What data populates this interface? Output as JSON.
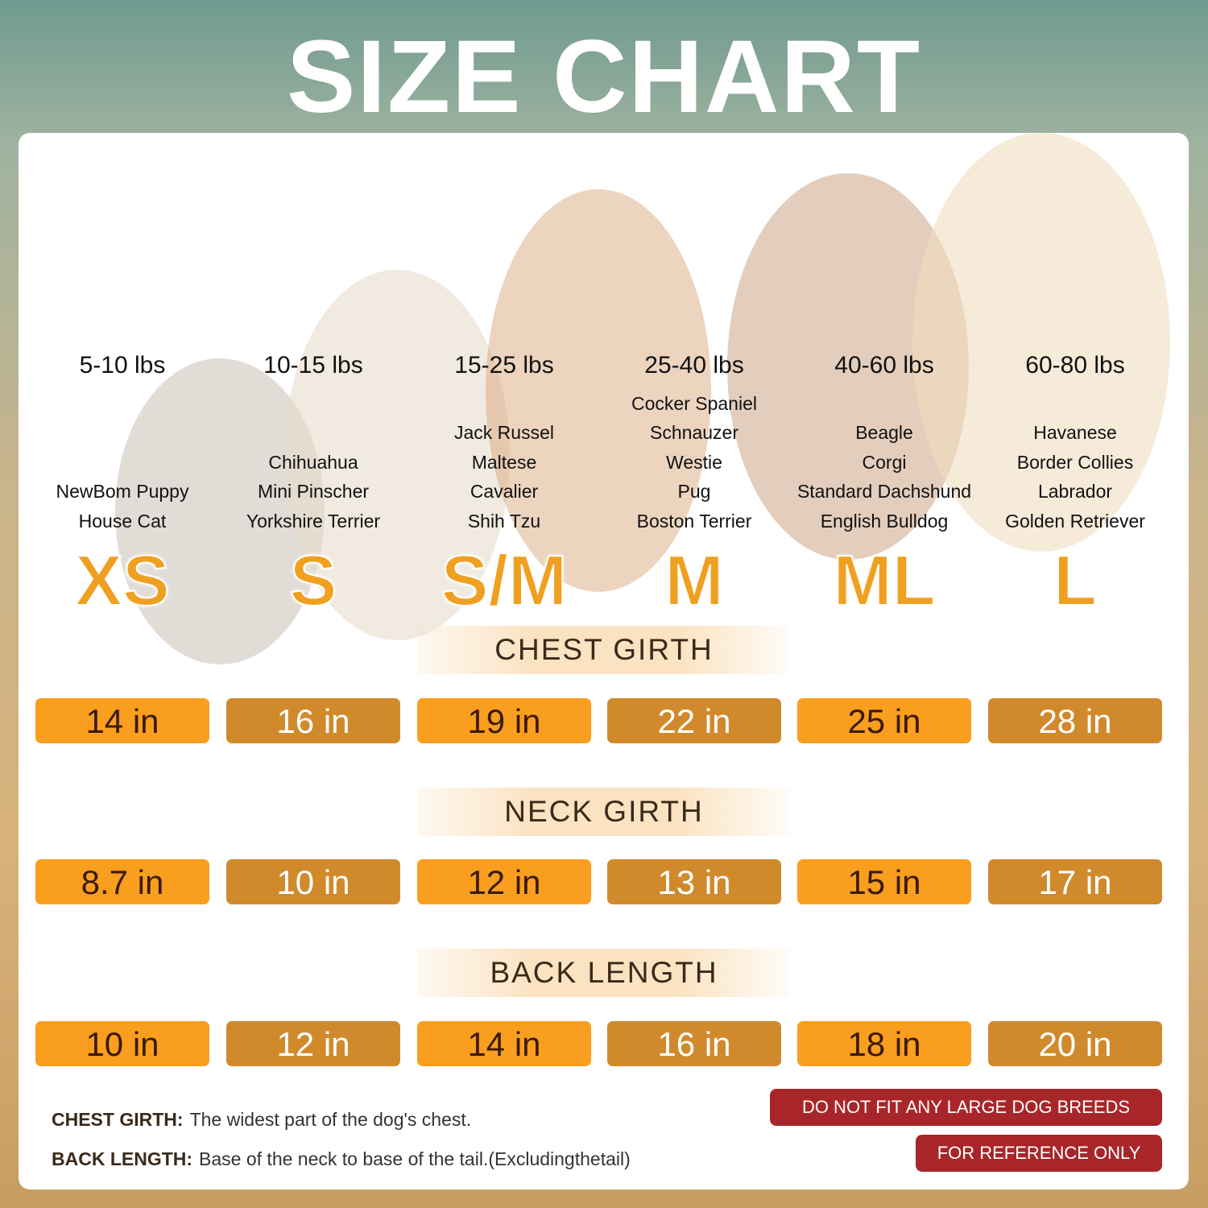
{
  "title": "SIZE CHART",
  "sizes": [
    {
      "size": "XS",
      "weight": "5-10 lbs",
      "breeds": [
        "NewBom Puppy",
        "House Cat"
      ]
    },
    {
      "size": "S",
      "weight": "10-15 lbs",
      "breeds": [
        "Chihuahua",
        "Mini Pinscher",
        "Yorkshire Terrier"
      ]
    },
    {
      "size": "S/M",
      "weight": "15-25 lbs",
      "breeds": [
        "Jack Russel",
        "Maltese",
        "Cavalier",
        "Shih Tzu"
      ]
    },
    {
      "size": "M",
      "weight": "25-40 lbs",
      "breeds": [
        "Cocker Spaniel",
        "Schnauzer",
        "Westie",
        "Pug",
        "Boston Terrier"
      ]
    },
    {
      "size": "ML",
      "weight": "40-60 lbs",
      "breeds": [
        "Beagle",
        "Corgi",
        "Standard Dachshund",
        "English Bulldog"
      ]
    },
    {
      "size": "L",
      "weight": "60-80 lbs",
      "breeds": [
        "Havanese",
        "Border Collies",
        "Labrador",
        "Golden Retriever"
      ]
    }
  ],
  "measurements": [
    {
      "label": "CHEST GIRTH",
      "values": [
        "14 in",
        "16 in",
        "19 in",
        "22 in",
        "25 in",
        "28 in"
      ]
    },
    {
      "label": "NECK GIRTH",
      "values": [
        "8.7 in",
        "10 in",
        "12 in",
        "13 in",
        "15 in",
        "17 in"
      ]
    },
    {
      "label": "BACK LENGTH",
      "values": [
        "10 in",
        "12 in",
        "14 in",
        "16 in",
        "18 in",
        "20 in"
      ]
    }
  ],
  "notes": [
    {
      "term": "CHEST GIRTH:",
      "text": "The widest part of the dog's chest."
    },
    {
      "term": "BACK LENGTH:",
      "text": "Base of the neck to base of the tail.(Excludingthetail)"
    }
  ],
  "warnings": [
    "DO NOT FIT ANY LARGE DOG BREEDS",
    "FOR REFERENCE ONLY"
  ],
  "colors": {
    "orange": "#f99e1e",
    "brown": "#d08a2c",
    "warning": "#a8262a"
  }
}
